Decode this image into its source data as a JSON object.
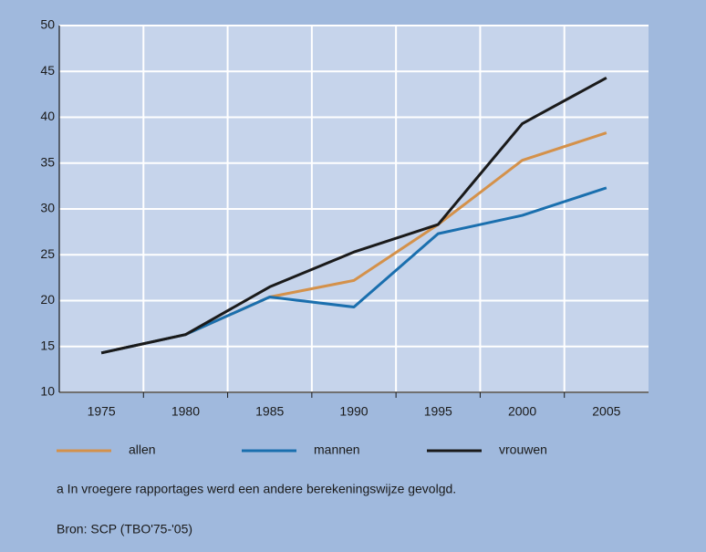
{
  "chart_data": {
    "type": "line",
    "categories": [
      "1975",
      "1980",
      "1985",
      "1990",
      "1995",
      "2000",
      "2005"
    ],
    "series": [
      {
        "name": "allen",
        "color": "#d4914a",
        "values": [
          14.3,
          16.3,
          20.4,
          22.2,
          28.3,
          35.3,
          38.3
        ]
      },
      {
        "name": "mannen",
        "color": "#1a6fae",
        "values": [
          14.3,
          16.3,
          20.4,
          19.3,
          27.3,
          29.3,
          32.3
        ]
      },
      {
        "name": "vrouwen",
        "color": "#1a1a1a",
        "values": [
          14.3,
          16.3,
          21.5,
          25.3,
          28.3,
          39.3,
          44.3
        ]
      }
    ],
    "ylim": [
      10,
      50
    ],
    "yticks": [
      10,
      15,
      20,
      25,
      30,
      35,
      40,
      45,
      50
    ],
    "grid": true,
    "footnote": "a   In vroegere rapportages werd een andere berekeningswijze gevolgd.",
    "source": "Bron: SCP (TBO'75-'05)"
  }
}
